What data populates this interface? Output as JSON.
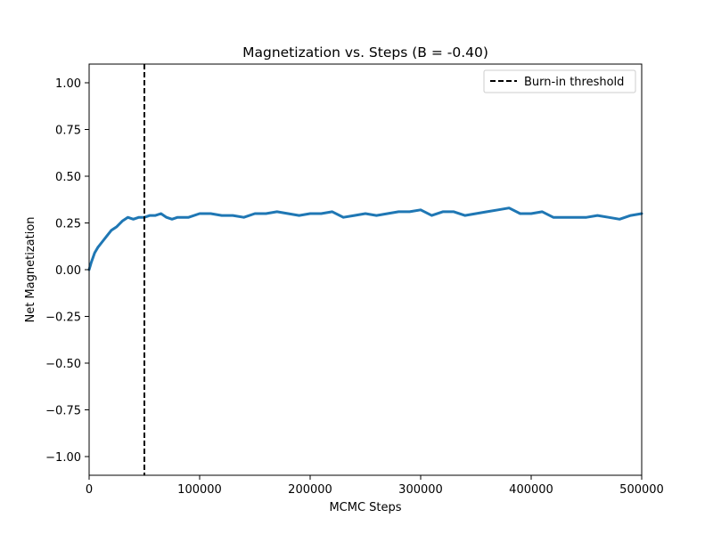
{
  "chart_data": {
    "type": "line",
    "title": "Magnetization vs. Steps (B = -0.40)",
    "xlabel": "MCMC Steps",
    "ylabel": "Net Magnetization",
    "xlim": [
      0,
      500000
    ],
    "ylim": [
      -1.1,
      1.1
    ],
    "xticks": [
      0,
      100000,
      200000,
      300000,
      400000,
      500000
    ],
    "xtick_labels": [
      "0",
      "100000",
      "200000",
      "300000",
      "400000",
      "500000"
    ],
    "yticks": [
      -1.0,
      -0.75,
      -0.5,
      -0.25,
      0.0,
      0.25,
      0.5,
      0.75,
      1.0
    ],
    "ytick_labels": [
      "−1.00",
      "−0.75",
      "−0.50",
      "−0.25",
      "0.00",
      "0.25",
      "0.50",
      "0.75",
      "1.00"
    ],
    "grid": false,
    "legend_position": "top-right",
    "series": [
      {
        "color": "#1f77b4",
        "x": [
          0,
          2000,
          5000,
          8000,
          12000,
          16000,
          20000,
          25000,
          30000,
          35000,
          40000,
          45000,
          50000,
          55000,
          60000,
          65000,
          70000,
          75000,
          80000,
          90000,
          100000,
          110000,
          120000,
          130000,
          140000,
          150000,
          160000,
          170000,
          180000,
          190000,
          200000,
          210000,
          220000,
          230000,
          240000,
          250000,
          260000,
          270000,
          280000,
          290000,
          300000,
          310000,
          320000,
          330000,
          340000,
          350000,
          360000,
          370000,
          380000,
          390000,
          400000,
          410000,
          420000,
          430000,
          440000,
          450000,
          460000,
          470000,
          480000,
          490000,
          500000
        ],
        "y": [
          0.0,
          0.04,
          0.09,
          0.12,
          0.15,
          0.18,
          0.21,
          0.23,
          0.26,
          0.28,
          0.27,
          0.28,
          0.28,
          0.29,
          0.29,
          0.3,
          0.28,
          0.27,
          0.28,
          0.28,
          0.3,
          0.3,
          0.29,
          0.29,
          0.28,
          0.3,
          0.3,
          0.31,
          0.3,
          0.29,
          0.3,
          0.3,
          0.31,
          0.28,
          0.29,
          0.3,
          0.29,
          0.3,
          0.31,
          0.31,
          0.32,
          0.29,
          0.31,
          0.31,
          0.29,
          0.3,
          0.31,
          0.32,
          0.33,
          0.3,
          0.3,
          0.31,
          0.28,
          0.28,
          0.28,
          0.28,
          0.29,
          0.28,
          0.27,
          0.29,
          0.3
        ]
      }
    ],
    "threshold": {
      "x": 50000,
      "label": "Burn-in threshold",
      "color": "#000000",
      "style": "dashed"
    }
  }
}
